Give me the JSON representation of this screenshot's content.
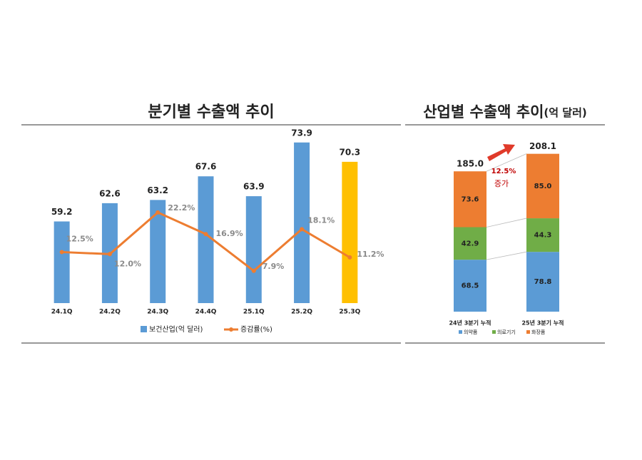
{
  "chart_data": [
    {
      "type": "bar",
      "title": "분기별 수출액 추이",
      "categories": [
        "24.1Q",
        "24.2Q",
        "24.3Q",
        "24.4Q",
        "25.1Q",
        "25.2Q",
        "25.3Q"
      ],
      "series": [
        {
          "name": "보건산업(억 달러)",
          "color": "#5b9bd5",
          "colors": [
            "#5b9bd5",
            "#5b9bd5",
            "#5b9bd5",
            "#5b9bd5",
            "#5b9bd5",
            "#5b9bd5",
            "#ffc000"
          ],
          "values": [
            59.2,
            62.6,
            63.2,
            67.6,
            63.9,
            73.9,
            70.3
          ]
        },
        {
          "name": "증감률(%)",
          "type": "line",
          "axis": "y2",
          "color": "#ed7d31",
          "values": [
            12.5,
            12.0,
            22.2,
            16.9,
            7.9,
            18.1,
            11.2
          ],
          "value_labels": [
            "12.5%",
            "12.0%",
            "22.2%",
            "16.9%",
            "7.9%",
            "18.1%",
            "11.2%"
          ]
        }
      ],
      "ylim": [
        44,
        74.4
      ],
      "y2lim": [
        0,
        40
      ],
      "legend": "bottom"
    },
    {
      "type": "stacked_bar",
      "title": "산업별 수출액 추이",
      "unit": "(억 달러)",
      "categories": [
        "24년 3분기 누적",
        "25년 3분기 누적"
      ],
      "series": [
        {
          "name": "의약품",
          "color": "#5b9bd5",
          "values": [
            68.5,
            78.8
          ]
        },
        {
          "name": "의료기기",
          "color": "#70ad47",
          "values": [
            42.9,
            44.3
          ]
        },
        {
          "name": "화장품",
          "color": "#ed7d31",
          "values": [
            73.6,
            85.0
          ],
          "value_labels": [
            "73.6",
            "85.0"
          ]
        }
      ],
      "totals": [
        185.0,
        208.1
      ],
      "total_labels": [
        "185.0",
        "208.1"
      ],
      "annotation": "12.5%",
      "annotation_note": "증가",
      "ylim": [
        0,
        220
      ],
      "legend": "bottom"
    }
  ]
}
